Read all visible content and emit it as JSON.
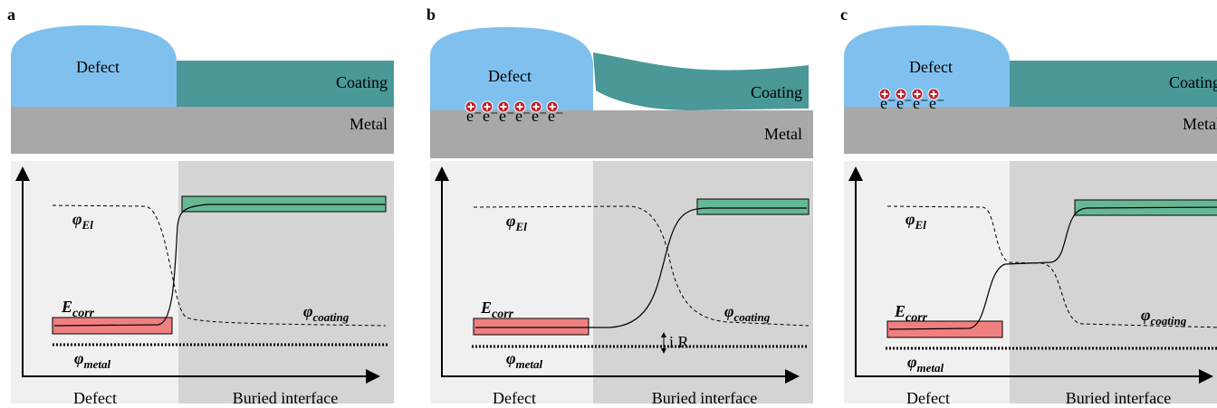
{
  "panels": [
    {
      "label": "a",
      "defect": "Defect",
      "coating": "Coating",
      "metal": "Metal",
      "phi_el": {
        "symbol": "φ",
        "subscript": "El"
      },
      "e_corr": {
        "symbol": "E",
        "subscript": "corr"
      },
      "phi_coating": {
        "symbol": "φ",
        "subscript": "coating"
      },
      "phi_metal": {
        "symbol": "φ",
        "subscript": "metal"
      },
      "x_labels": [
        "Defect",
        "Buried interface"
      ]
    },
    {
      "label": "b",
      "defect": "Defect",
      "coating": "Coating",
      "metal": "Metal",
      "electrons": [
        "e⁻",
        "e⁻",
        "e⁻",
        "e⁻",
        "e⁻",
        "e⁻"
      ],
      "phi_el": {
        "symbol": "φ",
        "subscript": "El"
      },
      "e_corr": {
        "symbol": "E",
        "subscript": "corr"
      },
      "phi_coating": {
        "symbol": "φ",
        "subscript": "coating"
      },
      "phi_metal": {
        "symbol": "φ",
        "subscript": "metal"
      },
      "ir_label": "i.R",
      "x_labels": [
        "Defect",
        "Buried interface"
      ]
    },
    {
      "label": "c",
      "defect": "Defect",
      "coating": "Coating",
      "metal": "Metal",
      "electrons": [
        "e⁻",
        "e⁻",
        "e⁻",
        "e⁻"
      ],
      "phi_el": {
        "symbol": "φ",
        "subscript": "El"
      },
      "e_corr": {
        "symbol": "E",
        "subscript": "corr"
      },
      "phi_coating": {
        "symbol": "φ",
        "subscript": "coating"
      },
      "phi_metal": {
        "symbol": "φ",
        "subscript": "metal"
      },
      "x_labels": [
        "Defect",
        "Buried interface"
      ]
    }
  ]
}
